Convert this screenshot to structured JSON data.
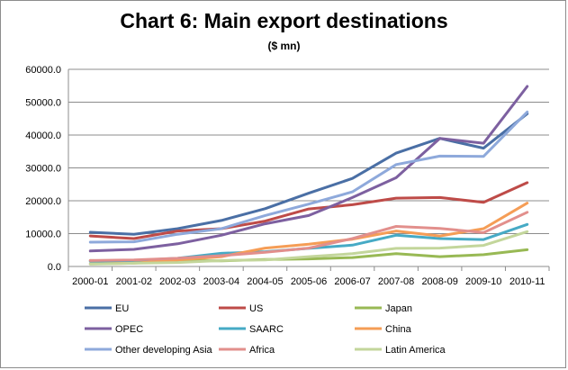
{
  "chart_data": {
    "type": "line",
    "title": "Chart 6: Main export destinations",
    "subtitle": "($ mn)",
    "xlabel": "",
    "ylabel": "",
    "ylim": [
      0,
      60000
    ],
    "y_ticks": [
      "0.0",
      "10000.0",
      "20000.0",
      "30000.0",
      "40000.0",
      "50000.0",
      "60000.0"
    ],
    "categories": [
      "2000-01",
      "2001-02",
      "2002-03",
      "2003-04",
      "2004-05",
      "2005-06",
      "2006-07",
      "2007-08",
      "2008-09",
      "2009-10",
      "2010-11"
    ],
    "grid": true,
    "legend_position": "bottom",
    "series": [
      {
        "name": "EU",
        "color": "#4a6fa5",
        "values": [
          10400,
          9800,
          11500,
          14000,
          17600,
          22300,
          26800,
          34500,
          39000,
          36000,
          46500
        ]
      },
      {
        "name": "US",
        "color": "#be4b48",
        "values": [
          9300,
          8500,
          10800,
          11500,
          13800,
          17500,
          18800,
          20800,
          21000,
          19500,
          25500
        ]
      },
      {
        "name": "Japan",
        "color": "#98b954",
        "values": [
          1800,
          1500,
          1800,
          1700,
          2100,
          2300,
          2700,
          3900,
          3000,
          3600,
          5100
        ]
      },
      {
        "name": "OPEC",
        "color": "#7d60a0",
        "values": [
          4700,
          5200,
          6900,
          9500,
          13000,
          15500,
          21000,
          27000,
          39000,
          37500,
          54800
        ]
      },
      {
        "name": "SAARC",
        "color": "#46aac5",
        "values": [
          1600,
          1800,
          2500,
          4000,
          4500,
          5500,
          6500,
          9500,
          8500,
          8200,
          12800
        ]
      },
      {
        "name": "China",
        "color": "#f59d56",
        "values": [
          800,
          1000,
          2000,
          3000,
          5600,
          6800,
          8300,
          10800,
          9300,
          11500,
          19300
        ]
      },
      {
        "name": "Other developing Asia",
        "color": "#8ea9db",
        "values": [
          7400,
          7500,
          9800,
          11500,
          15500,
          19000,
          22700,
          31000,
          33600,
          33500,
          47000
        ]
      },
      {
        "name": "Africa",
        "color": "#e28f8c",
        "values": [
          1800,
          2000,
          2500,
          3300,
          4300,
          5600,
          8500,
          12200,
          11600,
          10300,
          16500
        ]
      },
      {
        "name": "Latin America",
        "color": "#c3d69b",
        "values": [
          700,
          1000,
          1200,
          1800,
          2000,
          3000,
          3900,
          5500,
          5600,
          6400,
          10600
        ]
      }
    ]
  }
}
